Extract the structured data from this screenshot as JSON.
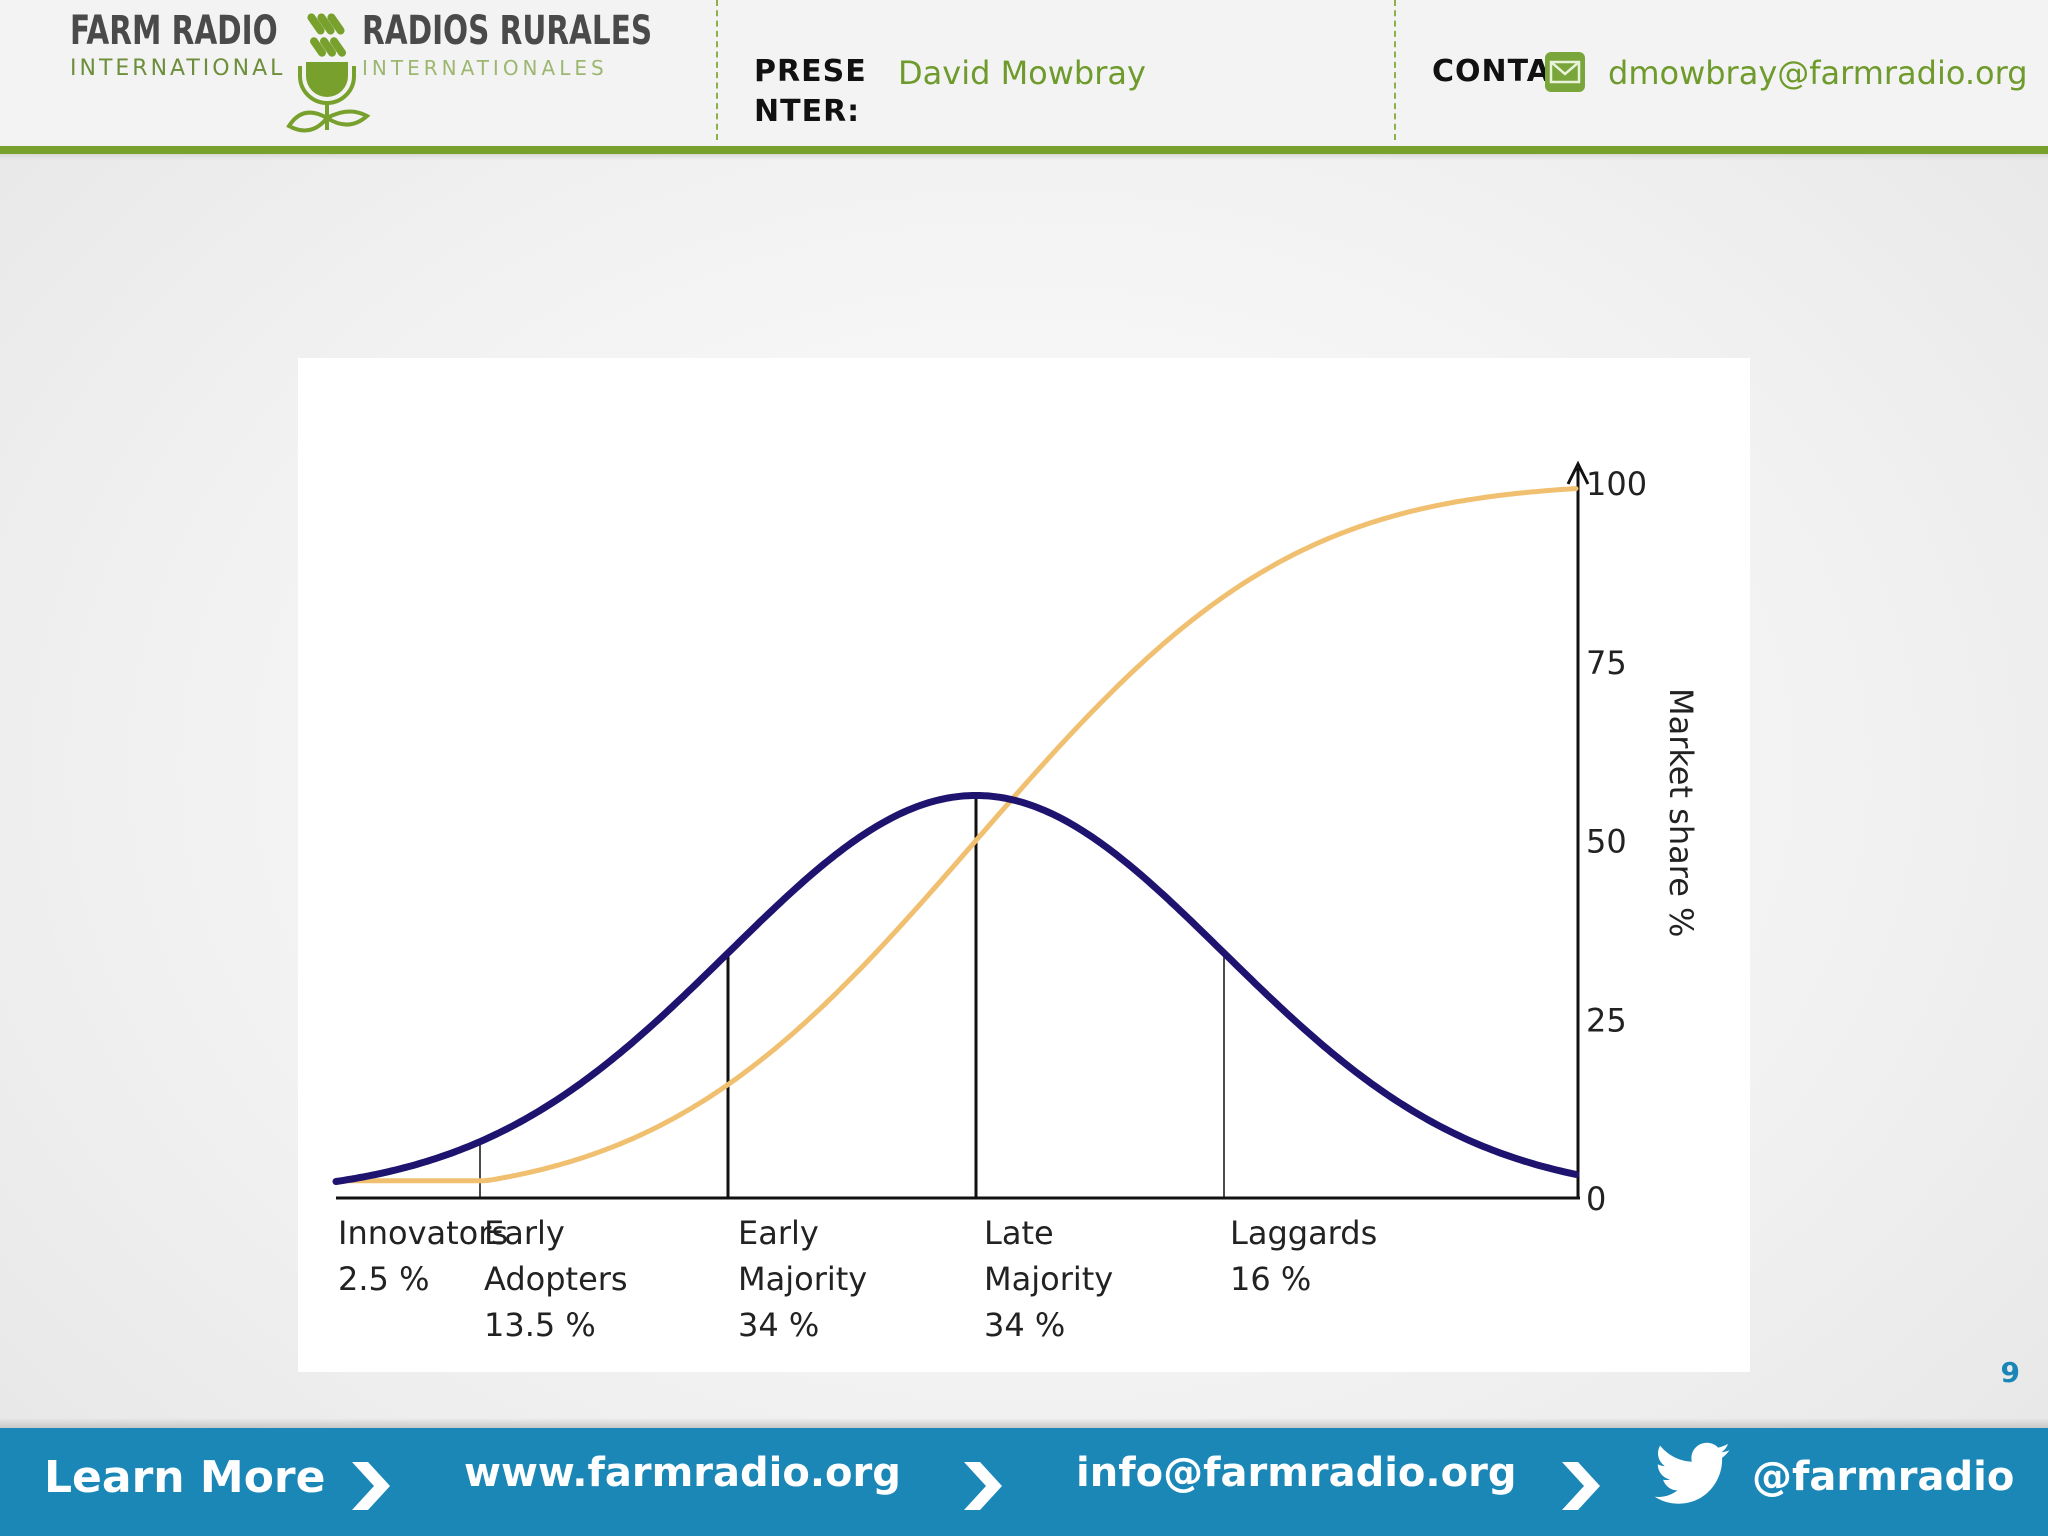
{
  "header": {
    "logo": {
      "en_title": "FARM RADIO",
      "en_sub": "INTERNATIONAL",
      "fr_title": "RADIOS RURALES",
      "fr_sub": "INTERNATIONALES"
    },
    "presenter_label_line1": "PRESE",
    "presenter_label_line2": "NTER:",
    "presenter_name": "David Mowbray",
    "contact_label": "CONTAC",
    "contact_email": "dmowbray@farmradio.org",
    "contact_icon": "mail-icon"
  },
  "colors": {
    "brand_green": "#78a02c",
    "footer_blue": "#1b87b7",
    "bell_curve": "#1e1470",
    "s_curve": "#f0c070"
  },
  "chart_data": {
    "type": "line",
    "series": [
      {
        "color": "#1e1470",
        "kind": "bell"
      },
      {
        "color": "#f0c070",
        "kind": "cumulative"
      }
    ],
    "ylabel": "Market share %",
    "ylim": [
      0,
      100
    ],
    "yticks": [
      "0",
      "25",
      "50",
      "75",
      "100"
    ],
    "categories": [
      {
        "name_lines": [
          "Innovators"
        ],
        "pct": "2.5 %"
      },
      {
        "name_lines": [
          "Early",
          "Adopters"
        ],
        "pct": "13.5 %"
      },
      {
        "name_lines": [
          "Early",
          "Majority"
        ],
        "pct": "34 %"
      },
      {
        "name_lines": [
          "Late",
          "Majority"
        ],
        "pct": "34 %"
      },
      {
        "name_lines": [
          "Laggards"
        ],
        "pct": "16 %"
      }
    ],
    "grid": false
  },
  "page_number": "9",
  "footer": {
    "learn_more": "Learn More",
    "website": "www.farmradio.org",
    "email": "info@farmradio.org",
    "twitter": "@farmradio",
    "twitter_icon": "twitter-bird-icon",
    "chevron_icon": "chevron-right-icon"
  }
}
